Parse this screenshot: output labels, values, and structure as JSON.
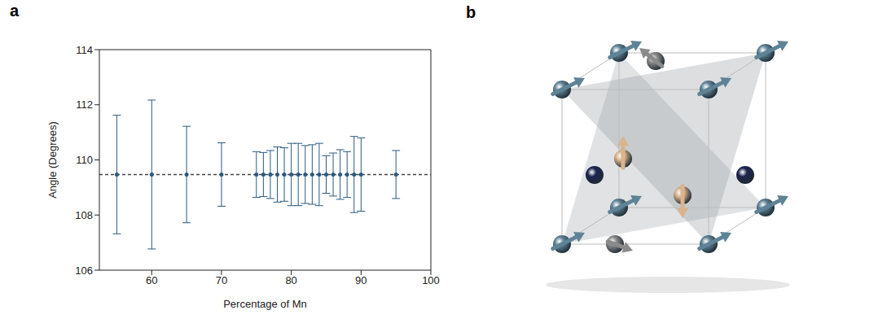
{
  "chart_data": {
    "type": "scatter",
    "panel_label": "a",
    "x_label": "Percentage of Mn",
    "y_label": "Angle (Degrees)",
    "x": [
      55,
      60,
      65,
      70,
      75,
      76,
      77,
      78,
      79,
      80,
      81,
      82,
      83,
      84,
      85,
      86,
      87,
      88,
      89,
      90,
      95
    ],
    "values": [
      109.47,
      109.47,
      109.47,
      109.47,
      109.47,
      109.47,
      109.47,
      109.47,
      109.47,
      109.47,
      109.47,
      109.47,
      109.47,
      109.47,
      109.47,
      109.47,
      109.47,
      109.47,
      109.47,
      109.47,
      109.47
    ],
    "error": [
      2.15,
      2.7,
      1.75,
      1.15,
      0.83,
      0.8,
      0.87,
      1.0,
      0.97,
      1.13,
      1.13,
      1.05,
      1.08,
      1.13,
      0.68,
      0.78,
      0.9,
      0.83,
      1.38,
      1.33,
      0.87
    ],
    "reference_line": 109.47,
    "color": "#2b5a80",
    "marker": "circle",
    "grid": false,
    "xlim": [
      52.5,
      100
    ],
    "xticks": [
      60,
      70,
      80,
      90,
      100
    ],
    "ylim": [
      106,
      114
    ],
    "yticks": [
      106,
      108,
      110,
      112,
      114
    ]
  },
  "diagram": {
    "panel_label": "b"
  }
}
